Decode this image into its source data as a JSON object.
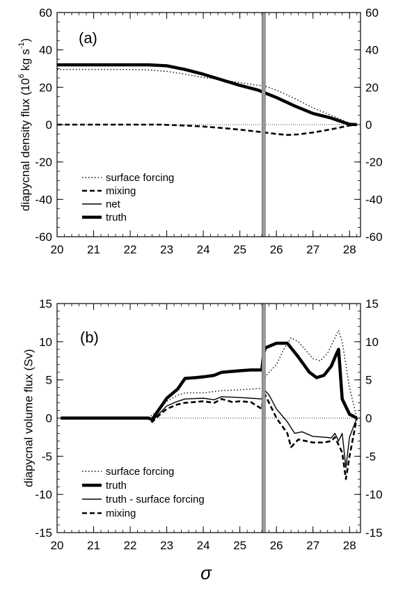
{
  "chart_data": [
    {
      "type": "line",
      "panel_label": "(a)",
      "ylabel": "diapycnal density flux (10",
      "ylabel_unit_exp": "6",
      "ylabel_unit": " kg s",
      "ylabel_unit_exp2": "-1",
      "ylabel_close": ")",
      "xlim": [
        20,
        28.3
      ],
      "ylim": [
        -60,
        60
      ],
      "x_ticks": [
        20,
        21,
        22,
        23,
        24,
        25,
        26,
        27,
        28
      ],
      "y_ticks": [
        -60,
        -40,
        -20,
        0,
        20,
        40,
        60
      ],
      "y_minor_step": 5,
      "x_minor_step": 0.2,
      "vertical_marker_x": 25.65,
      "zero_line": true,
      "legend_position": "lower-left",
      "series": [
        {
          "name": "surface forcing",
          "style": "dotted",
          "x": [
            20,
            21,
            22,
            22.5,
            23,
            23.5,
            24,
            24.5,
            25,
            25.5,
            25.7,
            26,
            26.5,
            27,
            27.5,
            27.8,
            28,
            28.2
          ],
          "y": [
            29.5,
            29.5,
            29.5,
            29.3,
            28.5,
            27,
            25.3,
            24,
            22.5,
            21,
            20.5,
            18.5,
            14,
            9,
            5,
            2.5,
            0.5,
            0
          ]
        },
        {
          "name": "mixing",
          "style": "dashed",
          "x": [
            20,
            21,
            22,
            22.8,
            23.5,
            24,
            24.5,
            25,
            25.5,
            26,
            26.3,
            26.6,
            27,
            27.5,
            28,
            28.2
          ],
          "y": [
            0,
            0,
            0,
            0,
            -0.5,
            -1,
            -1.8,
            -2.7,
            -3.8,
            -5,
            -5.5,
            -5.2,
            -4.2,
            -2.5,
            -0.5,
            0
          ]
        },
        {
          "name": "net",
          "style": "solid",
          "x": [
            20,
            21,
            22,
            22.5,
            23,
            23.5,
            24,
            24.5,
            25,
            25.5,
            26,
            26.5,
            27,
            27.5,
            27.8,
            28,
            28.2
          ],
          "y": [
            32,
            32,
            32,
            32,
            31.5,
            29.5,
            27,
            24,
            21,
            18.5,
            14.5,
            10,
            6,
            3.5,
            1.5,
            0.2,
            0
          ]
        },
        {
          "name": "truth",
          "style": "thick",
          "x": [
            20,
            21,
            22,
            22.5,
            23,
            23.5,
            24,
            24.5,
            25,
            25.5,
            26,
            26.5,
            27,
            27.5,
            27.8,
            28,
            28.2
          ],
          "y": [
            32,
            32,
            32,
            32,
            31.5,
            29.5,
            27,
            24,
            21,
            18.5,
            14.5,
            10,
            6,
            3.5,
            1.5,
            0.2,
            0
          ]
        }
      ]
    },
    {
      "type": "line",
      "panel_label": "(b)",
      "ylabel": "diapycnal volume flux (Sv)",
      "xlabel": "σ",
      "xlim": [
        20,
        28.3
      ],
      "ylim": [
        -15,
        15
      ],
      "x_ticks": [
        20,
        21,
        22,
        23,
        24,
        25,
        26,
        27,
        28
      ],
      "y_ticks": [
        -15,
        -10,
        -5,
        0,
        5,
        10,
        15
      ],
      "y_minor_step": 1,
      "x_minor_step": 0.2,
      "vertical_marker_x": 25.65,
      "zero_line": true,
      "legend_position": "lower-left",
      "series": [
        {
          "name": "surface forcing",
          "style": "dotted",
          "x": [
            20.1,
            21,
            22,
            22.5,
            22.8,
            23,
            23.3,
            23.5,
            24,
            24.5,
            25,
            25.3,
            25.65,
            25.7,
            26,
            26.2,
            26.4,
            26.6,
            27,
            27.2,
            27.4,
            27.6,
            27.7,
            27.8,
            28,
            28.2
          ],
          "y": [
            0,
            0,
            0,
            0,
            1.2,
            2.2,
            3,
            3.3,
            3.3,
            3.6,
            3.7,
            3.8,
            3.9,
            5.5,
            7,
            9,
            10.5,
            10,
            7.8,
            7.5,
            8.5,
            10.5,
            11.5,
            10,
            4,
            0
          ]
        },
        {
          "name": "truth",
          "style": "thick",
          "x": [
            20.1,
            21,
            22,
            22.5,
            22.6,
            22.8,
            23,
            23.3,
            23.5,
            23.8,
            24,
            24.3,
            24.5,
            25,
            25.3,
            25.6,
            25.65,
            25.7,
            26,
            26.3,
            26.6,
            26.9,
            27.1,
            27.3,
            27.5,
            27.65,
            27.7,
            27.8,
            28,
            28.2
          ],
          "y": [
            0,
            0,
            0,
            0,
            -0.2,
            1.2,
            2.6,
            3.8,
            5.2,
            5.3,
            5.4,
            5.6,
            6,
            6.2,
            6.3,
            6.3,
            8.5,
            9.2,
            9.8,
            9.8,
            8,
            6,
            5.3,
            5.6,
            6.8,
            8.5,
            9,
            2.5,
            0.5,
            0
          ]
        },
        {
          "name": "truth - surface forcing",
          "style": "solid",
          "x": [
            20.1,
            21,
            22,
            22.5,
            22.6,
            22.8,
            23,
            23.3,
            23.5,
            24,
            24.3,
            24.5,
            25,
            25.3,
            25.6,
            25.65,
            25.8,
            26,
            26.3,
            26.5,
            26.7,
            27,
            27.3,
            27.5,
            27.6,
            27.7,
            27.8,
            27.9,
            28,
            28.2
          ],
          "y": [
            0,
            0,
            0,
            0,
            -0.4,
            0.6,
            1.6,
            2.2,
            2.5,
            2.6,
            2.4,
            2.8,
            2.7,
            2.6,
            2.5,
            3.8,
            3,
            1.2,
            -0.5,
            -2,
            -1.8,
            -2.4,
            -2.5,
            -2.6,
            -2,
            -3,
            -2,
            -6.5,
            -2.5,
            0
          ]
        },
        {
          "name": "mixing",
          "style": "dashed",
          "x": [
            20.1,
            21,
            22,
            22.5,
            22.6,
            22.8,
            23,
            23.3,
            23.5,
            24,
            24.3,
            24.5,
            24.8,
            25,
            25.3,
            25.6,
            25.65,
            25.8,
            26,
            26.3,
            26.4,
            26.6,
            27,
            27.3,
            27.5,
            27.6,
            27.7,
            27.8,
            27.9,
            28,
            28.2
          ],
          "y": [
            0,
            0,
            0,
            0,
            -0.5,
            0.4,
            1.2,
            1.8,
            2,
            2.2,
            2,
            2.5,
            2.1,
            2.2,
            2.1,
            1.2,
            3.4,
            2,
            0,
            -2,
            -3.8,
            -2.8,
            -3.2,
            -3.2,
            -3,
            -2.5,
            -3.5,
            -4.5,
            -8,
            -5,
            0
          ]
        }
      ]
    }
  ],
  "legend_a": [
    "surface forcing",
    "mixing",
    "net",
    "truth"
  ],
  "legend_b": [
    "surface forcing",
    "truth",
    "truth - surface forcing",
    "mixing"
  ]
}
